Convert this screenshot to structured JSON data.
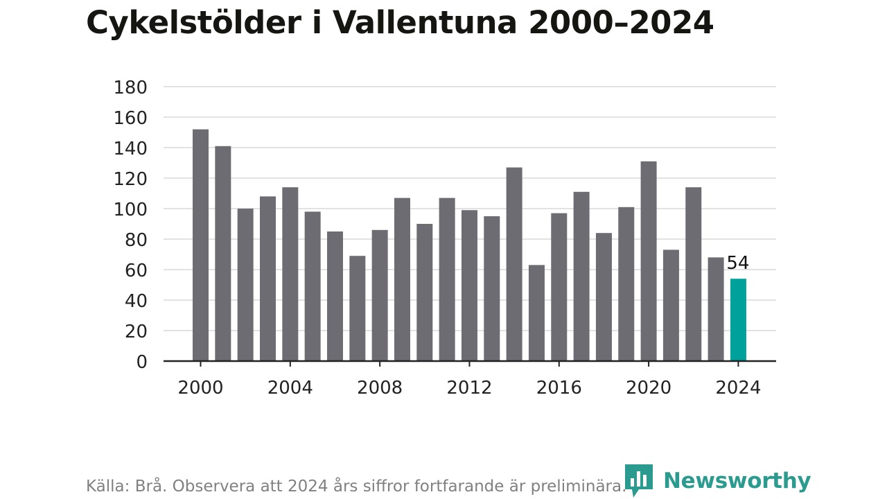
{
  "title": "Cykelstölder i Vallentuna 2000–2024",
  "footer": "Källa: Brå. Observera att 2024 års siffror fortfarande är preliminära.",
  "logo": {
    "text": "Newsworthy",
    "icon": "bar-chart-logo-icon",
    "color": "#2b9a8f"
  },
  "colors": {
    "bar": "#6d6c73",
    "highlight": "#00a19a",
    "grid": "#d9d9d9",
    "axis": "#222222"
  },
  "chart_data": {
    "type": "bar",
    "title": "Cykelstölder i Vallentuna 2000–2024",
    "xlabel": "",
    "ylabel": "",
    "categories": [
      2000,
      2001,
      2002,
      2003,
      2004,
      2005,
      2006,
      2007,
      2008,
      2009,
      2010,
      2011,
      2012,
      2013,
      2014,
      2015,
      2016,
      2017,
      2018,
      2019,
      2020,
      2021,
      2022,
      2023,
      2024
    ],
    "values": [
      152,
      141,
      100,
      108,
      114,
      98,
      85,
      69,
      86,
      107,
      90,
      107,
      99,
      95,
      127,
      63,
      97,
      111,
      84,
      101,
      131,
      73,
      114,
      68,
      54
    ],
    "ylim": [
      0,
      180
    ],
    "yticks": [
      0,
      20,
      40,
      60,
      80,
      100,
      120,
      140,
      160,
      180
    ],
    "xticks": [
      2000,
      2004,
      2008,
      2012,
      2016,
      2020,
      2024
    ],
    "grid": true,
    "highlight": {
      "category": 2024,
      "label": "54"
    }
  }
}
